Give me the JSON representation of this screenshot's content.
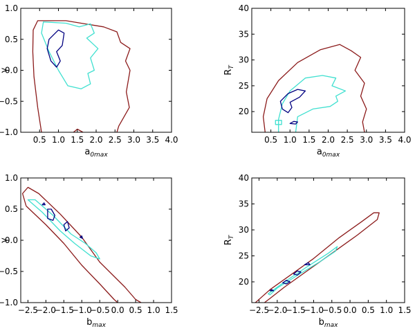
{
  "colors": {
    "outer": "#8b1a1a",
    "middle": "#40e0d0",
    "inner": "#000080"
  },
  "chart_data": [
    {
      "type": "contour",
      "id": "tl",
      "xlabel": {
        "main": "a",
        "sub": "0max"
      },
      "ylabel": {
        "main": "γ",
        "sub": ""
      },
      "xlim": [
        0.0,
        4.0
      ],
      "ylim": [
        -1.0,
        1.0
      ],
      "xticks": [
        0.5,
        1.0,
        1.5,
        2.0,
        2.5,
        3.0,
        3.5,
        4.0
      ],
      "xticklabels": [
        "0.5",
        "1.0",
        "1.5",
        "2.0",
        "2.5",
        "3.0",
        "3.5",
        "4.0"
      ],
      "yticks": [
        -1.0,
        -0.5,
        0.0,
        0.5,
        1.0
      ],
      "yticklabels": [
        "−1.0",
        "−0.5",
        "0.0",
        "0.5",
        "1.0"
      ],
      "contours": [
        {
          "level": "outer",
          "closed": false,
          "points": [
            [
              0.55,
              -1.0
            ],
            [
              0.45,
              -0.6
            ],
            [
              0.35,
              -0.1
            ],
            [
              0.32,
              0.3
            ],
            [
              0.33,
              0.65
            ],
            [
              0.45,
              0.8
            ],
            [
              0.8,
              0.8
            ],
            [
              1.2,
              0.8
            ],
            [
              1.6,
              0.76
            ],
            [
              2.2,
              0.7
            ],
            [
              2.55,
              0.62
            ],
            [
              2.65,
              0.45
            ],
            [
              2.9,
              0.35
            ],
            [
              2.78,
              0.15
            ],
            [
              2.9,
              0.0
            ],
            [
              2.8,
              -0.35
            ],
            [
              2.88,
              -0.6
            ],
            [
              2.6,
              -0.9
            ],
            [
              2.55,
              -1.0
            ]
          ]
        },
        {
          "level": "outer",
          "closed": false,
          "points": [
            [
              1.4,
              -1.0
            ],
            [
              1.5,
              -0.95
            ],
            [
              1.65,
              -1.0
            ]
          ]
        },
        {
          "level": "middle",
          "closed": true,
          "points": [
            [
              0.6,
              0.78
            ],
            [
              1.2,
              0.76
            ],
            [
              1.55,
              0.7
            ],
            [
              1.85,
              0.75
            ],
            [
              1.95,
              0.6
            ],
            [
              1.75,
              0.52
            ],
            [
              2.05,
              0.35
            ],
            [
              1.85,
              0.2
            ],
            [
              1.95,
              0.0
            ],
            [
              1.78,
              -0.05
            ],
            [
              1.85,
              -0.22
            ],
            [
              1.6,
              -0.3
            ],
            [
              1.25,
              -0.25
            ],
            [
              1.0,
              0.0
            ],
            [
              0.75,
              0.3
            ],
            [
              0.55,
              0.6
            ]
          ]
        },
        {
          "level": "inner",
          "closed": true,
          "points": [
            [
              0.75,
              0.5
            ],
            [
              1.0,
              0.65
            ],
            [
              1.15,
              0.6
            ],
            [
              1.1,
              0.4
            ],
            [
              0.95,
              0.3
            ],
            [
              1.05,
              0.15
            ],
            [
              0.95,
              0.05
            ],
            [
              0.8,
              0.15
            ],
            [
              0.7,
              0.35
            ]
          ]
        }
      ]
    },
    {
      "type": "contour",
      "id": "tr",
      "xlabel": {
        "main": "a",
        "sub": "0max"
      },
      "ylabel": {
        "main": "R",
        "sub": "T"
      },
      "xlim": [
        0.0,
        4.0
      ],
      "ylim": [
        16.0,
        40.0
      ],
      "xticks": [
        0.5,
        1.0,
        1.5,
        2.0,
        2.5,
        3.0,
        3.5,
        4.0
      ],
      "xticklabels": [
        "0.5",
        "1.0",
        "1.5",
        "2.0",
        "2.5",
        "3.0",
        "3.5",
        "4.0"
      ],
      "yticks": [
        20,
        25,
        30,
        35,
        40
      ],
      "yticklabels": [
        "20",
        "25",
        "30",
        "35",
        "40"
      ],
      "contours": [
        {
          "level": "outer",
          "closed": false,
          "points": [
            [
              0.35,
              16.0
            ],
            [
              0.3,
              19.0
            ],
            [
              0.4,
              22.5
            ],
            [
              0.7,
              26.0
            ],
            [
              1.2,
              29.5
            ],
            [
              1.8,
              32.0
            ],
            [
              2.3,
              33.0
            ],
            [
              2.6,
              31.8
            ],
            [
              2.85,
              30.5
            ],
            [
              2.7,
              28.0
            ],
            [
              2.95,
              25.5
            ],
            [
              2.85,
              23.0
            ],
            [
              3.0,
              20.5
            ],
            [
              2.9,
              18.0
            ],
            [
              2.95,
              16.0
            ]
          ]
        },
        {
          "level": "middle",
          "closed": false,
          "points": [
            [
              0.7,
              16.0
            ],
            [
              0.7,
              18.5
            ],
            [
              0.8,
              21.5
            ],
            [
              1.0,
              24.0
            ],
            [
              1.4,
              26.5
            ],
            [
              1.85,
              27.0
            ],
            [
              2.2,
              26.5
            ],
            [
              2.1,
              25.0
            ],
            [
              2.45,
              24.0
            ],
            [
              2.2,
              23.0
            ],
            [
              2.25,
              22.0
            ],
            [
              2.05,
              21.0
            ],
            [
              1.6,
              20.5
            ],
            [
              1.2,
              19.0
            ],
            [
              1.15,
              16.0
            ]
          ]
        },
        {
          "level": "middle",
          "closed": true,
          "points": [
            [
              0.62,
              17.5
            ],
            [
              0.78,
              17.5
            ],
            [
              0.78,
              18.3
            ],
            [
              0.62,
              18.3
            ]
          ]
        },
        {
          "level": "inner",
          "closed": true,
          "points": [
            [
              0.75,
              22.0
            ],
            [
              0.95,
              23.5
            ],
            [
              1.2,
              24.3
            ],
            [
              1.4,
              24.0
            ],
            [
              1.25,
              22.8
            ],
            [
              1.0,
              21.8
            ],
            [
              1.05,
              20.8
            ],
            [
              0.95,
              19.8
            ],
            [
              0.8,
              20.5
            ]
          ]
        },
        {
          "level": "inner",
          "closed": true,
          "points": [
            [
              1.0,
              17.7
            ],
            [
              1.1,
              18.1
            ],
            [
              1.2,
              18.0
            ],
            [
              1.15,
              17.6
            ]
          ]
        }
      ]
    },
    {
      "type": "contour",
      "id": "bl",
      "xlabel": {
        "main": "b",
        "sub": "max"
      },
      "ylabel": {
        "main": "γ",
        "sub": ""
      },
      "xlim": [
        -2.7,
        1.5
      ],
      "ylim": [
        -1.0,
        1.0
      ],
      "xticks": [
        -2.5,
        -2.0,
        -1.5,
        -1.0,
        -0.5,
        0.0,
        0.5,
        1.0,
        1.5
      ],
      "xticklabels": [
        "−2.5",
        "−2.0",
        "−1.5",
        "−1.0",
        "−0.5",
        "0.0",
        "0.5",
        "1.0",
        "1.5"
      ],
      "yticks": [
        -1.0,
        -0.5,
        0.0,
        0.5,
        1.0
      ],
      "yticklabels": [
        "−1.0",
        "−0.5",
        "0.0",
        "0.5",
        "1.0"
      ],
      "contours": [
        {
          "level": "outer",
          "closed": false,
          "points": [
            [
              -2.55,
              0.55
            ],
            [
              -2.65,
              0.75
            ],
            [
              -2.5,
              0.85
            ],
            [
              -2.2,
              0.75
            ],
            [
              -1.6,
              0.42
            ],
            [
              -1.0,
              0.05
            ],
            [
              -0.5,
              -0.35
            ],
            [
              0.2,
              -0.75
            ],
            [
              0.5,
              -0.95
            ],
            [
              0.65,
              -1.0
            ]
          ]
        },
        {
          "level": "outer",
          "closed": false,
          "points": [
            [
              -2.55,
              0.55
            ],
            [
              -2.0,
              0.25
            ],
            [
              -1.5,
              -0.05
            ],
            [
              -1.0,
              -0.4
            ],
            [
              -0.5,
              -0.7
            ],
            [
              -0.1,
              -0.95
            ],
            [
              0.0,
              -1.0
            ]
          ]
        },
        {
          "level": "middle",
          "closed": true,
          "points": [
            [
              -2.5,
              0.65
            ],
            [
              -2.3,
              0.65
            ],
            [
              -1.8,
              0.4
            ],
            [
              -1.3,
              0.1
            ],
            [
              -0.9,
              -0.05
            ],
            [
              -0.6,
              -0.2
            ],
            [
              -0.5,
              -0.3
            ],
            [
              -0.75,
              -0.25
            ],
            [
              -1.2,
              -0.05
            ],
            [
              -1.6,
              0.15
            ],
            [
              -2.1,
              0.45
            ]
          ]
        },
        {
          "level": "inner",
          "closed": true,
          "points": [
            [
              -1.95,
              0.5
            ],
            [
              -1.85,
              0.5
            ],
            [
              -1.75,
              0.4
            ],
            [
              -1.8,
              0.32
            ],
            [
              -1.95,
              0.35
            ]
          ]
        },
        {
          "level": "inner",
          "closed": true,
          "points": [
            [
              -2.1,
              0.57
            ],
            [
              -2.05,
              0.6
            ],
            [
              -2.02,
              0.57
            ]
          ]
        },
        {
          "level": "inner",
          "closed": true,
          "points": [
            [
              -1.5,
              0.25
            ],
            [
              -1.4,
              0.3
            ],
            [
              -1.35,
              0.2
            ],
            [
              -1.45,
              0.15
            ]
          ]
        },
        {
          "level": "inner",
          "closed": true,
          "points": [
            [
              -1.05,
              0.05
            ],
            [
              -1.0,
              0.07
            ],
            [
              -0.98,
              0.03
            ]
          ]
        }
      ]
    },
    {
      "type": "contour",
      "id": "br",
      "xlabel": {
        "main": "b",
        "sub": "max"
      },
      "ylabel": {
        "main": "R",
        "sub": "T"
      },
      "xlim": [
        -2.7,
        1.5
      ],
      "ylim": [
        16.0,
        40.0
      ],
      "xticks": [
        -2.5,
        -2.0,
        -1.5,
        -1.0,
        -0.5,
        0.0,
        0.5,
        1.0,
        1.5
      ],
      "xticklabels": [
        "−2.5",
        "−2.0",
        "−1.5",
        "−1.0",
        "−0.5",
        "0.0",
        "0.5",
        "1.0",
        "1.5"
      ],
      "yticks": [
        20,
        25,
        30,
        35,
        40
      ],
      "yticklabels": [
        "20",
        "25",
        "30",
        "35",
        "40"
      ],
      "contours": [
        {
          "level": "outer",
          "closed": false,
          "points": [
            [
              -2.6,
              16.0
            ],
            [
              -2.2,
              18.5
            ],
            [
              -1.6,
              21.5
            ],
            [
              -1.0,
              24.5
            ],
            [
              -0.3,
              28.5
            ],
            [
              0.3,
              31.5
            ],
            [
              0.65,
              33.3
            ],
            [
              0.8,
              33.3
            ],
            [
              0.75,
              32.0
            ],
            [
              0.2,
              29.0
            ],
            [
              -0.5,
              25.5
            ],
            [
              -1.2,
              22.0
            ],
            [
              -1.8,
              19.0
            ],
            [
              -2.2,
              16.8
            ],
            [
              -2.35,
              16.0
            ]
          ]
        },
        {
          "level": "middle",
          "closed": true,
          "points": [
            [
              -2.25,
              17.7
            ],
            [
              -1.8,
              20.0
            ],
            [
              -1.2,
              22.8
            ],
            [
              -0.6,
              25.5
            ],
            [
              -0.35,
              26.8
            ],
            [
              -0.4,
              25.9
            ],
            [
              -0.8,
              24.0
            ],
            [
              -1.5,
              21.0
            ],
            [
              -2.0,
              18.8
            ],
            [
              -2.2,
              17.5
            ]
          ]
        },
        {
          "level": "inner",
          "closed": true,
          "points": [
            [
              -1.85,
              19.8
            ],
            [
              -1.75,
              20.3
            ],
            [
              -1.65,
              20.0
            ],
            [
              -1.75,
              19.6
            ]
          ]
        },
        {
          "level": "inner",
          "closed": true,
          "points": [
            [
              -1.55,
              21.5
            ],
            [
              -1.45,
              22.1
            ],
            [
              -1.35,
              21.9
            ],
            [
              -1.45,
              21.3
            ]
          ]
        },
        {
          "level": "inner",
          "closed": true,
          "points": [
            [
              -1.25,
              23.3
            ],
            [
              -1.15,
              23.7
            ],
            [
              -1.1,
              23.3
            ]
          ]
        },
        {
          "level": "inner",
          "closed": true,
          "points": [
            [
              -2.2,
              18.3
            ],
            [
              -2.15,
              18.5
            ],
            [
              -2.1,
              18.3
            ]
          ]
        }
      ]
    }
  ]
}
